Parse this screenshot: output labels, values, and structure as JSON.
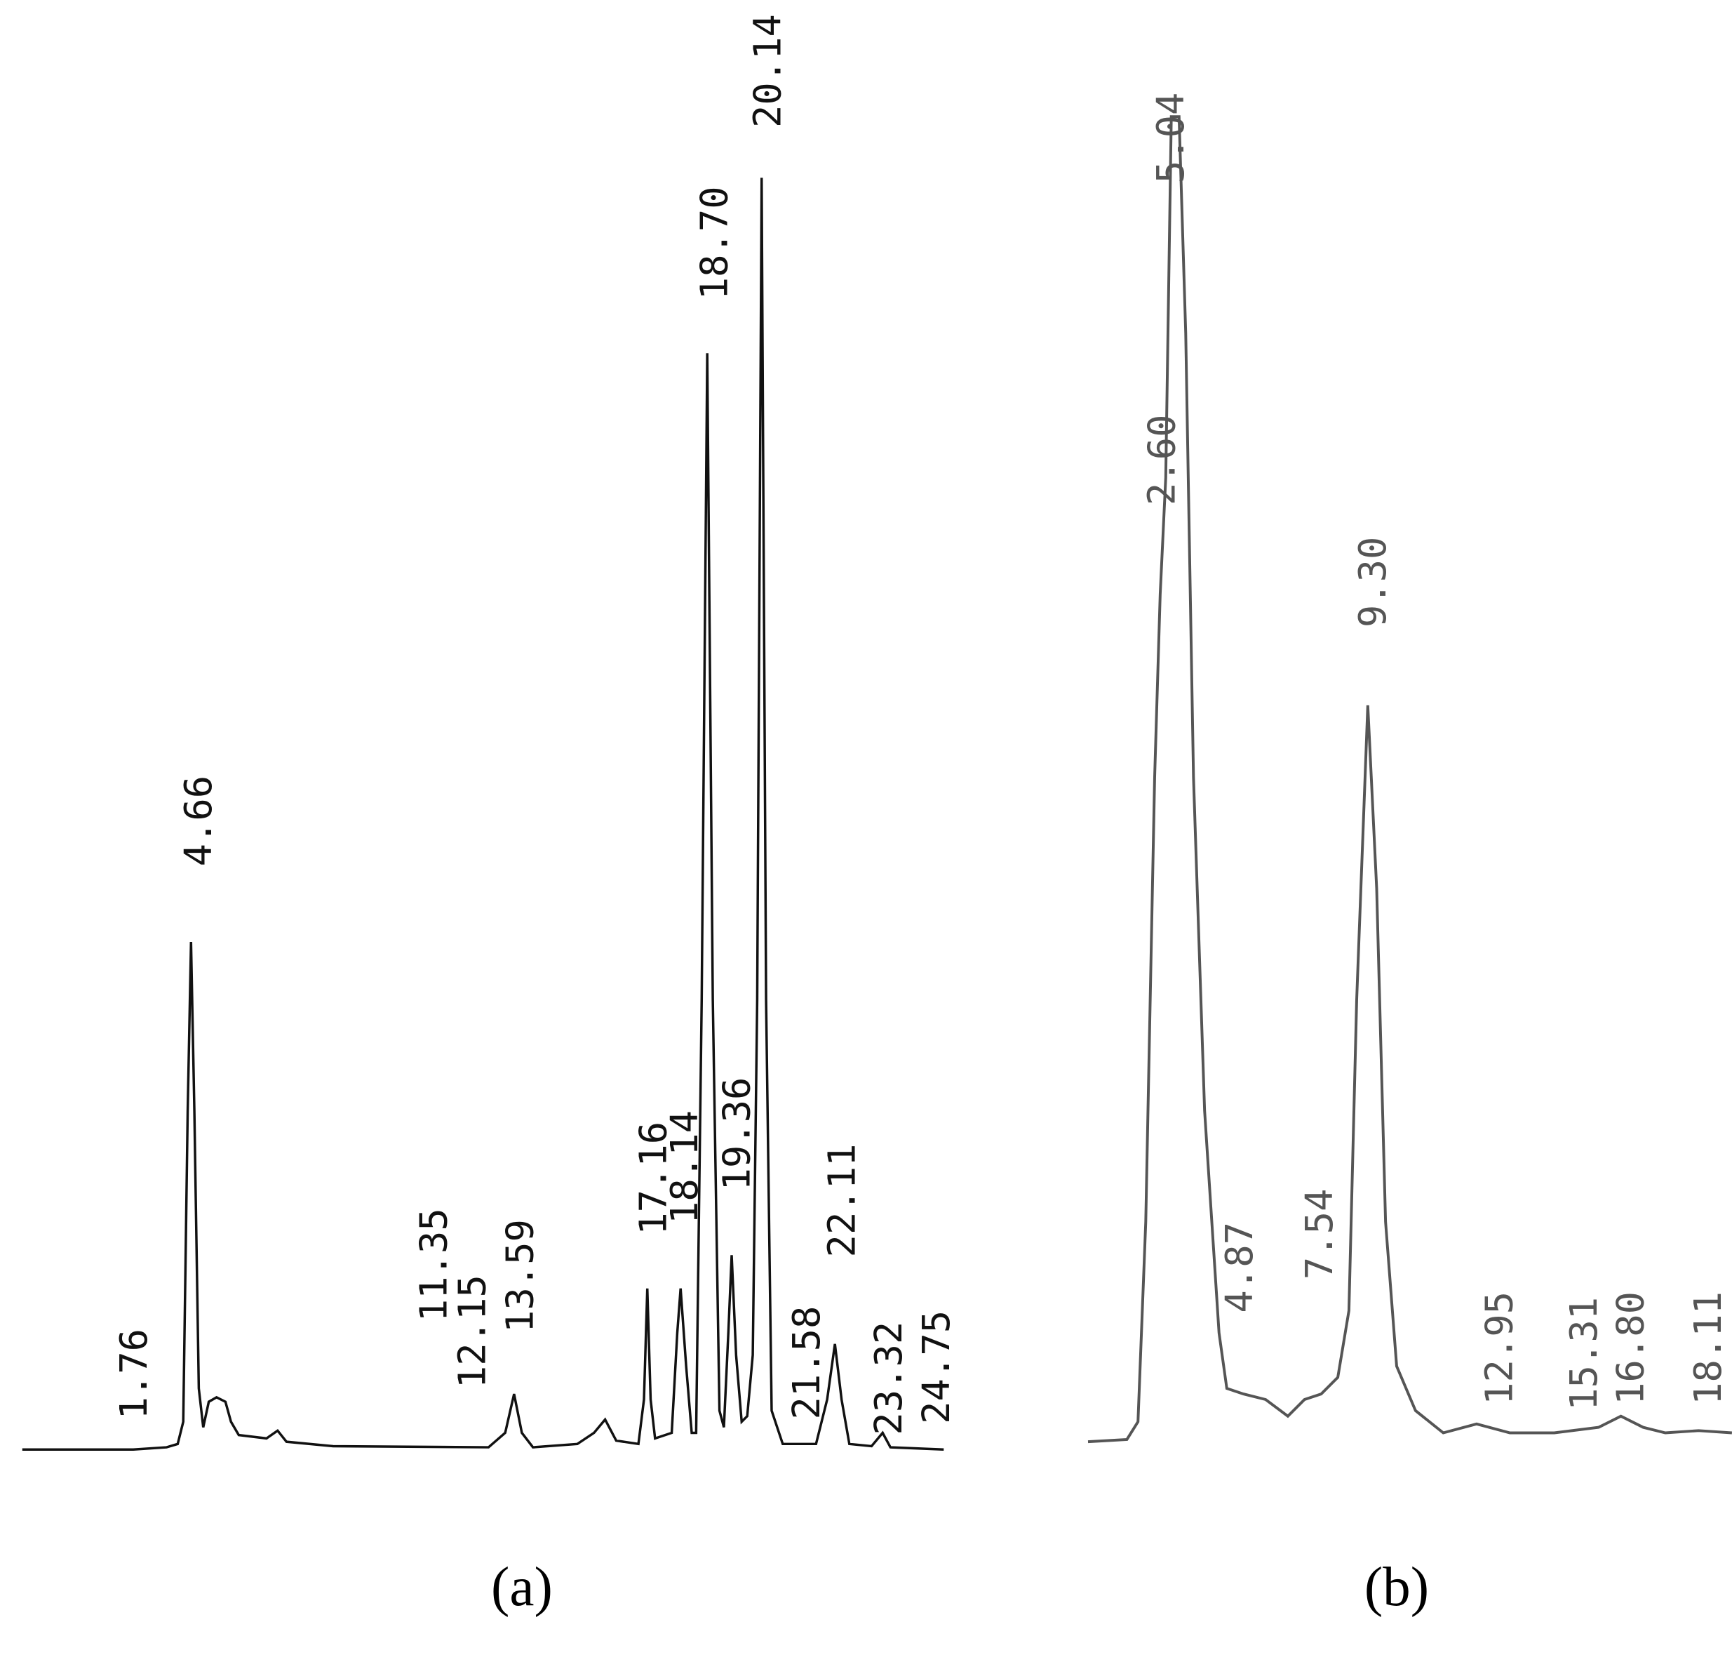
{
  "panels": [
    {
      "caption": "(a)",
      "peaks": [
        "4.66",
        "1.76",
        "11.35",
        "12.15",
        "13.59",
        "17.16",
        "18.14",
        "18.70",
        "19.36",
        "20.14",
        "21.58",
        "22.11",
        "23.32",
        "24.75"
      ]
    },
    {
      "caption": "(b)",
      "peaks": [
        "5.04",
        "2.60",
        "4.87",
        "7.54",
        "9.30",
        "12.95",
        "15.31",
        "16.80",
        "18.11"
      ]
    }
  ]
}
